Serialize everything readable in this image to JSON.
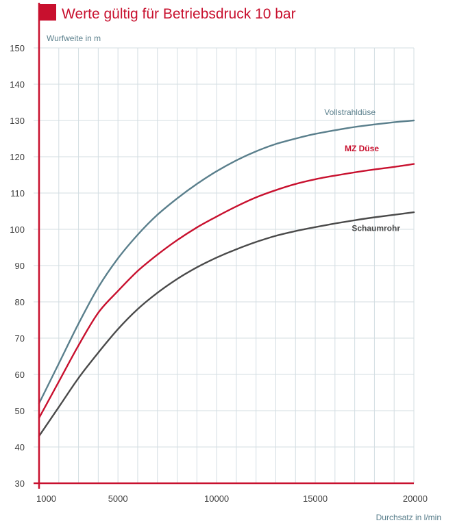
{
  "chart_data": {
    "type": "line",
    "title": "Werte gültig für Betriebsdruck 10 bar",
    "ylabel": "Wurfweite in m",
    "xlabel": "Durchsatz in l/min",
    "xlim": [
      1000,
      20000
    ],
    "ylim": [
      30,
      150
    ],
    "xticks": [
      1000,
      5000,
      10000,
      15000,
      20000
    ],
    "xtick_labels": [
      "1000",
      "5000",
      "10000",
      "15000",
      "20000"
    ],
    "yticks": [
      30,
      40,
      50,
      60,
      70,
      80,
      90,
      100,
      110,
      120,
      130,
      140,
      150
    ],
    "ytick_labels": [
      "30",
      "40",
      "50",
      "60",
      "70",
      "80",
      "90",
      "100",
      "110",
      "120",
      "130",
      "140",
      "150"
    ],
    "grid": true,
    "series": [
      {
        "name": "Vollstrahldüse",
        "color": "#5a7f8c",
        "x": [
          1000,
          2000,
          3000,
          4000,
          5000,
          6000,
          7000,
          8000,
          9000,
          10000,
          11000,
          12000,
          13000,
          14000,
          15000,
          16000,
          17000,
          18000,
          19000,
          20000
        ],
        "y": [
          52,
          63,
          74,
          84,
          92,
          98.5,
          104,
          108.5,
          112.5,
          116,
          119,
          121.5,
          123.5,
          125,
          126.3,
          127.3,
          128.2,
          128.9,
          129.5,
          130
        ]
      },
      {
        "name": "MZ Düse",
        "color": "#c8102e",
        "x": [
          1000,
          2000,
          3000,
          4000,
          5000,
          6000,
          7000,
          8000,
          9000,
          10000,
          11000,
          12000,
          13000,
          14000,
          15000,
          16000,
          17000,
          18000,
          19000,
          20000
        ],
        "y": [
          48,
          58,
          68,
          77,
          83,
          88.5,
          93,
          97,
          100.5,
          103.5,
          106.3,
          108.8,
          110.8,
          112.5,
          113.8,
          114.8,
          115.7,
          116.5,
          117.2,
          118
        ]
      },
      {
        "name": "Schaumrohr",
        "color": "#4a4a4a",
        "x": [
          1000,
          2000,
          3000,
          4000,
          5000,
          6000,
          7000,
          8000,
          9000,
          10000,
          11000,
          12000,
          13000,
          14000,
          15000,
          16000,
          17000,
          18000,
          19000,
          20000
        ],
        "y": [
          43,
          51,
          59,
          66,
          72.5,
          78,
          82.5,
          86.3,
          89.5,
          92.2,
          94.5,
          96.5,
          98.2,
          99.5,
          100.6,
          101.6,
          102.5,
          103.3,
          104,
          104.7
        ]
      }
    ],
    "accent_color": "#c8102e",
    "grid_color": "#d3dde2",
    "tick_text_color": "#3c3c3c",
    "label_text_color": "#5a7f8c"
  }
}
